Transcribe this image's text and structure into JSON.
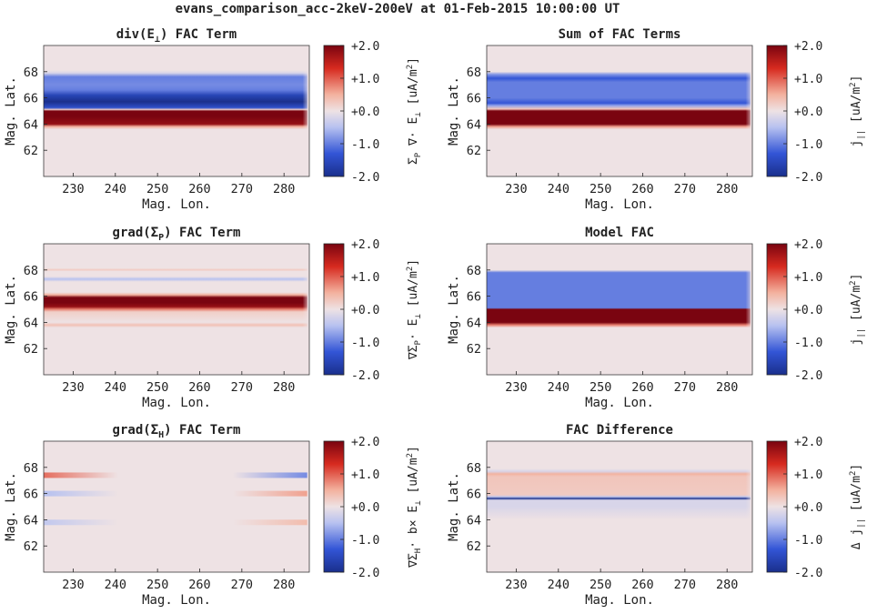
{
  "figure_title": "evans_comparison_acc-2keV-200eV at 01-Feb-2015 10:00:00 UT",
  "colors": {
    "neg_strong": "#1a2f8c",
    "neg": "#3355d6",
    "neg_light": "#b7c1f0",
    "zero": "#eee2e4",
    "pos_light": "#f3b29f",
    "pos": "#d72a1f",
    "pos_strong": "#7a0410",
    "axis": "#262626"
  },
  "colormap": "blue-white-red diverging",
  "colorbar_ticks": [
    "+2.0",
    "+1.0",
    "+0.0",
    "-1.0",
    "-2.0"
  ],
  "colorbar_range": [
    -2.0,
    2.0
  ],
  "chart_data": [
    {
      "type": "heatmap",
      "title_main": "div(E",
      "title_sub": "⊥",
      "title_rest": ") FAC Term",
      "xlabel": "Mag. Lon.",
      "ylabel": "Mag. Lat.",
      "xlim": [
        223,
        286
      ],
      "ylim": [
        60,
        70
      ],
      "xticks": [
        "230",
        "240",
        "250",
        "260",
        "270",
        "280"
      ],
      "yticks": [
        "62",
        "64",
        "66",
        "68"
      ],
      "clim": [
        -2.0,
        2.0
      ],
      "cbar_label_parts": [
        "Σ",
        "P",
        " ∇· E",
        "⊥",
        " [uA/m",
        "2",
        "]"
      ],
      "lat_profile": [
        {
          "lat": 63.6,
          "value": 0.0
        },
        {
          "lat": 63.8,
          "value": 0.5
        },
        {
          "lat": 64.0,
          "value": 1.8
        },
        {
          "lat": 64.6,
          "value": 2.2
        },
        {
          "lat": 65.0,
          "value": 2.0
        },
        {
          "lat": 65.1,
          "value": 0.2
        },
        {
          "lat": 65.25,
          "value": -1.4
        },
        {
          "lat": 65.7,
          "value": -2.2
        },
        {
          "lat": 66.2,
          "value": -1.6
        },
        {
          "lat": 66.6,
          "value": -1.0
        },
        {
          "lat": 67.0,
          "value": -0.9
        },
        {
          "lat": 67.6,
          "value": -1.0
        },
        {
          "lat": 67.9,
          "value": -0.2
        },
        {
          "lat": 68.1,
          "value": 0.0
        }
      ]
    },
    {
      "type": "heatmap",
      "title_main": "Sum of FAC Terms",
      "title_sub": "",
      "title_rest": "",
      "xlabel": "Mag. Lon.",
      "ylabel": "Mag. Lat.",
      "xlim": [
        223,
        286
      ],
      "ylim": [
        60,
        70
      ],
      "xticks": [
        "230",
        "240",
        "250",
        "260",
        "270",
        "280"
      ],
      "yticks": [
        "62",
        "64",
        "66",
        "68"
      ],
      "clim": [
        -2.0,
        2.0
      ],
      "cbar_label_parts": [
        "j",
        "||",
        " [uA/m",
        "2",
        "]"
      ],
      "lat_profile": [
        {
          "lat": 63.6,
          "value": 0.0
        },
        {
          "lat": 63.8,
          "value": 0.6
        },
        {
          "lat": 64.0,
          "value": 2.0
        },
        {
          "lat": 65.0,
          "value": 2.0
        },
        {
          "lat": 65.15,
          "value": 0.3
        },
        {
          "lat": 65.4,
          "value": -0.7
        },
        {
          "lat": 65.6,
          "value": -1.3
        },
        {
          "lat": 66.0,
          "value": -1.0
        },
        {
          "lat": 67.2,
          "value": -1.0
        },
        {
          "lat": 67.5,
          "value": -1.3
        },
        {
          "lat": 67.8,
          "value": -0.8
        },
        {
          "lat": 68.0,
          "value": 0.0
        }
      ]
    },
    {
      "type": "heatmap",
      "title_main": "grad(Σ",
      "title_sub": "P",
      "title_rest": ") FAC Term",
      "xlabel": "Mag. Lon.",
      "ylabel": "Mag. Lat.",
      "xlim": [
        223,
        286
      ],
      "ylim": [
        60,
        70
      ],
      "xticks": [
        "230",
        "240",
        "250",
        "260",
        "270",
        "280"
      ],
      "yticks": [
        "62",
        "64",
        "66",
        "68"
      ],
      "clim": [
        -2.0,
        2.0
      ],
      "cbar_label_parts": [
        "∇Σ",
        "P",
        "· E",
        "⊥",
        " [uA/m",
        "2",
        "]"
      ],
      "lat_profile": [
        {
          "lat": 63.6,
          "value": 0.0
        },
        {
          "lat": 63.8,
          "value": 0.35
        },
        {
          "lat": 64.0,
          "value": 0.0
        },
        {
          "lat": 64.8,
          "value": 0.2
        },
        {
          "lat": 65.0,
          "value": 0.8
        },
        {
          "lat": 65.2,
          "value": 1.8
        },
        {
          "lat": 65.5,
          "value": 2.5
        },
        {
          "lat": 65.9,
          "value": 2.2
        },
        {
          "lat": 66.1,
          "value": 0.5
        },
        {
          "lat": 66.3,
          "value": 0.0
        },
        {
          "lat": 67.1,
          "value": 0.0
        },
        {
          "lat": 67.3,
          "value": -0.5
        },
        {
          "lat": 67.5,
          "value": 0.0
        },
        {
          "lat": 67.9,
          "value": 0.0
        },
        {
          "lat": 68.0,
          "value": 0.25
        },
        {
          "lat": 68.15,
          "value": 0.0
        }
      ]
    },
    {
      "type": "heatmap",
      "title_main": "Model FAC",
      "title_sub": "",
      "title_rest": "",
      "xlabel": "Mag. Lon.",
      "ylabel": "Mag. Lat.",
      "xlim": [
        223,
        286
      ],
      "ylim": [
        60,
        70
      ],
      "xticks": [
        "230",
        "240",
        "250",
        "260",
        "270",
        "280"
      ],
      "yticks": [
        "62",
        "64",
        "66",
        "68"
      ],
      "clim": [
        -2.0,
        2.0
      ],
      "cbar_label_parts": [
        "j",
        "||",
        " [uA/m",
        "2",
        "]"
      ],
      "lat_profile": [
        {
          "lat": 63.6,
          "value": 0.0
        },
        {
          "lat": 63.8,
          "value": 0.8
        },
        {
          "lat": 64.0,
          "value": 2.0
        },
        {
          "lat": 65.0,
          "value": 2.0
        },
        {
          "lat": 65.1,
          "value": -1.0
        },
        {
          "lat": 67.8,
          "value": -1.0
        },
        {
          "lat": 68.0,
          "value": 0.0
        }
      ]
    },
    {
      "type": "heatmap",
      "title_main": "grad(Σ",
      "title_sub": "H",
      "title_rest": ") FAC Term",
      "xlabel": "Mag. Lon.",
      "ylabel": "Mag. Lat.",
      "xlim": [
        223,
        286
      ],
      "ylim": [
        60,
        70
      ],
      "xticks": [
        "230",
        "240",
        "250",
        "260",
        "270",
        "280"
      ],
      "yticks": [
        "62",
        "64",
        "66",
        "68"
      ],
      "clim": [
        -2.0,
        2.0
      ],
      "cbar_label_parts": [
        "∇Σ",
        "H",
        "· b× E",
        "⊥",
        " [uA/m",
        "2",
        "]"
      ],
      "edge_features": [
        {
          "lat": 67.4,
          "edge": "west",
          "value": 0.9
        },
        {
          "lat": 67.4,
          "edge": "east",
          "value": -0.9
        },
        {
          "lat": 66.0,
          "edge": "west",
          "value": -0.5
        },
        {
          "lat": 66.0,
          "edge": "east",
          "value": 0.6
        },
        {
          "lat": 63.8,
          "edge": "west",
          "value": -0.4
        },
        {
          "lat": 63.8,
          "edge": "east",
          "value": 0.4
        }
      ]
    },
    {
      "type": "heatmap",
      "title_main": "FAC Difference",
      "title_sub": "",
      "title_rest": "",
      "xlabel": "Mag. Lon.",
      "ylabel": "Mag. Lat.",
      "xlim": [
        223,
        286
      ],
      "ylim": [
        60,
        70
      ],
      "xticks": [
        "230",
        "240",
        "250",
        "260",
        "270",
        "280"
      ],
      "yticks": [
        "62",
        "64",
        "66",
        "68"
      ],
      "clim": [
        -2.0,
        2.0
      ],
      "cbar_label_parts": [
        "Δ j",
        "||",
        " [uA/m",
        "2",
        "]"
      ],
      "lat_profile": [
        {
          "lat": 64.0,
          "value": 0.0
        },
        {
          "lat": 64.5,
          "value": -0.1
        },
        {
          "lat": 65.0,
          "value": -0.2
        },
        {
          "lat": 65.5,
          "value": -0.2
        },
        {
          "lat": 65.62,
          "value": -2.2
        },
        {
          "lat": 65.75,
          "value": -0.4
        },
        {
          "lat": 65.9,
          "value": 0.25
        },
        {
          "lat": 67.3,
          "value": 0.3
        },
        {
          "lat": 67.5,
          "value": 0.5
        },
        {
          "lat": 67.7,
          "value": -0.2
        },
        {
          "lat": 67.9,
          "value": 0.0
        }
      ]
    }
  ]
}
